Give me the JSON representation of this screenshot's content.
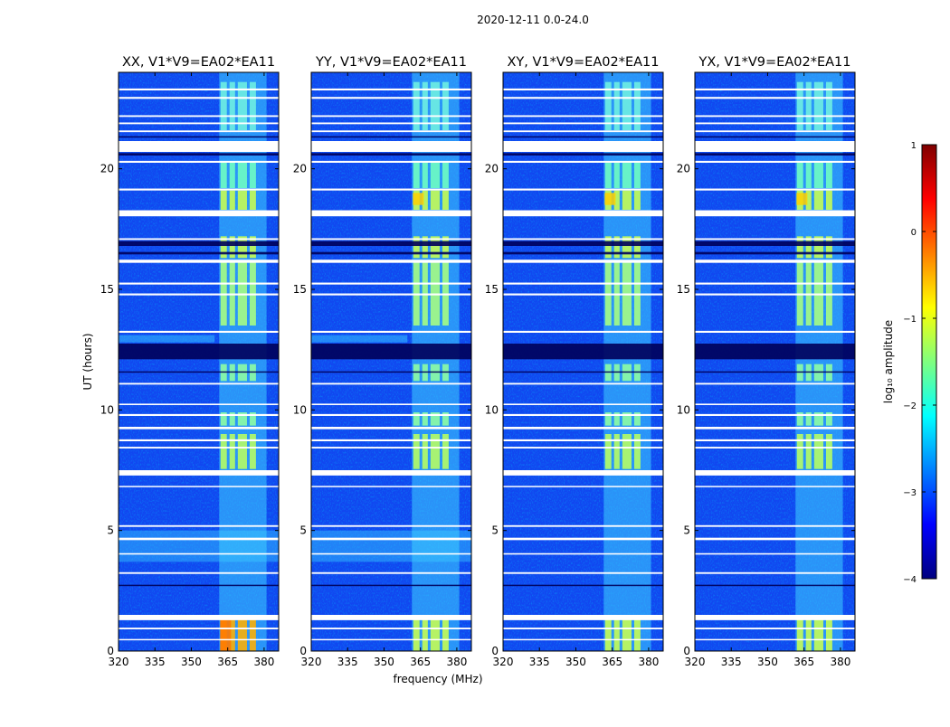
{
  "chart_data": {
    "type": "heatmap",
    "suptitle": "2020-12-11 0.0-24.0",
    "panels": [
      {
        "title": "XX, V1*V9=EA02*EA11",
        "strong_rfi": true
      },
      {
        "title": "YY, V1*V9=EA02*EA11",
        "strong_rfi": false
      },
      {
        "title": "XY, V1*V9=EA02*EA11",
        "strong_rfi": false
      },
      {
        "title": "YX, V1*V9=EA02*EA11",
        "strong_rfi": false
      }
    ],
    "xlabel": "frequency (MHz)",
    "ylabel": "UT (hours)",
    "xlim": [
      320,
      386
    ],
    "ylim": [
      0,
      24
    ],
    "xticks": [
      320,
      335,
      350,
      365,
      380
    ],
    "yticks": [
      0,
      5,
      10,
      15,
      20
    ],
    "rfi_band_mhz": [
      361.5,
      381
    ],
    "flagged_hours": [
      [
        0.45,
        0.5
      ],
      [
        0.9,
        0.97
      ],
      [
        1.28,
        1.5
      ],
      [
        3.2,
        3.27
      ],
      [
        4.0,
        4.06
      ],
      [
        4.6,
        4.7
      ],
      [
        5.15,
        5.22
      ],
      [
        6.8,
        6.85
      ],
      [
        7.28,
        7.5
      ],
      [
        8.4,
        8.47
      ],
      [
        8.7,
        8.78
      ],
      [
        9.2,
        9.3
      ],
      [
        9.75,
        9.83
      ],
      [
        10.2,
        10.26
      ],
      [
        11.05,
        11.12
      ],
      [
        13.2,
        13.28
      ],
      [
        14.75,
        14.83
      ],
      [
        15.2,
        15.28
      ],
      [
        16.1,
        16.23
      ],
      [
        17.05,
        17.12
      ],
      [
        18.03,
        18.28
      ],
      [
        19.1,
        19.18
      ],
      [
        20.25,
        20.33
      ],
      [
        20.7,
        21.15
      ],
      [
        21.52,
        21.59
      ],
      [
        21.85,
        21.92
      ],
      [
        22.15,
        22.22
      ],
      [
        22.9,
        22.98
      ],
      [
        23.25,
        23.33
      ]
    ],
    "dark_hours": [
      [
        12.1,
        12.75
      ],
      [
        16.8,
        17.0
      ],
      [
        16.45,
        16.55
      ],
      [
        20.55,
        20.65
      ],
      [
        21.3,
        21.35
      ],
      [
        11.55,
        11.6
      ],
      [
        2.7,
        2.75
      ]
    ],
    "colorbar": {
      "label": "log₁₀ amplitude",
      "range": [
        -4,
        1
      ],
      "ticks": [
        "1",
        "0",
        "−1",
        "−2",
        "−3",
        "−4"
      ],
      "colormap": "jet",
      "stops": [
        "#00007f",
        "#0000ff",
        "#007fff",
        "#00ffff",
        "#7fff7f",
        "#ffff00",
        "#ff7f00",
        "#ff0000",
        "#7f0000"
      ]
    }
  }
}
